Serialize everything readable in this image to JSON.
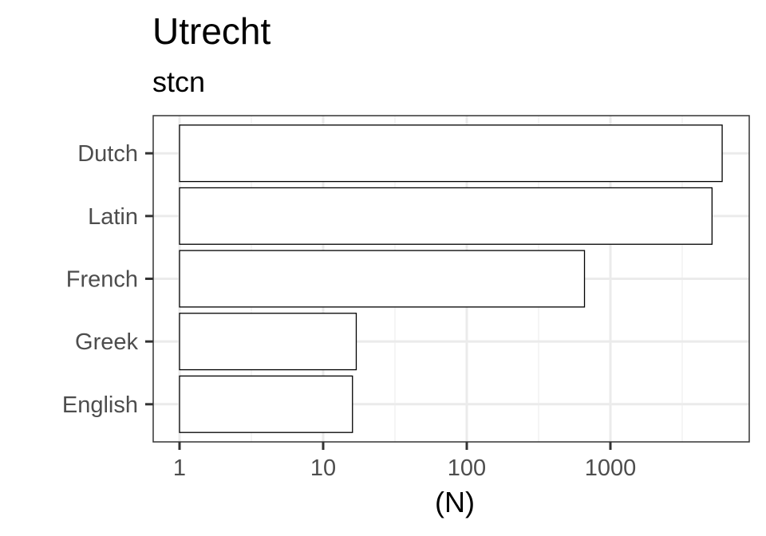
{
  "chart_data": {
    "type": "bar",
    "orientation": "horizontal",
    "title": "Utrecht",
    "subtitle": "stcn",
    "xlabel": "(N)",
    "ylabel": "",
    "x_scale": "log10",
    "xlim": [
      0.85,
      9000
    ],
    "x_ticks": [
      1,
      10,
      100,
      1000
    ],
    "x_tick_labels": [
      "1",
      "10",
      "100",
      "1000"
    ],
    "categories": [
      "Dutch",
      "Latin",
      "French",
      "Greek",
      "English"
    ],
    "values": [
      6000,
      5100,
      660,
      17,
      16
    ],
    "bar_fill": "#ffffff",
    "bar_stroke": "#000000",
    "grid": true,
    "theme": "bw"
  }
}
